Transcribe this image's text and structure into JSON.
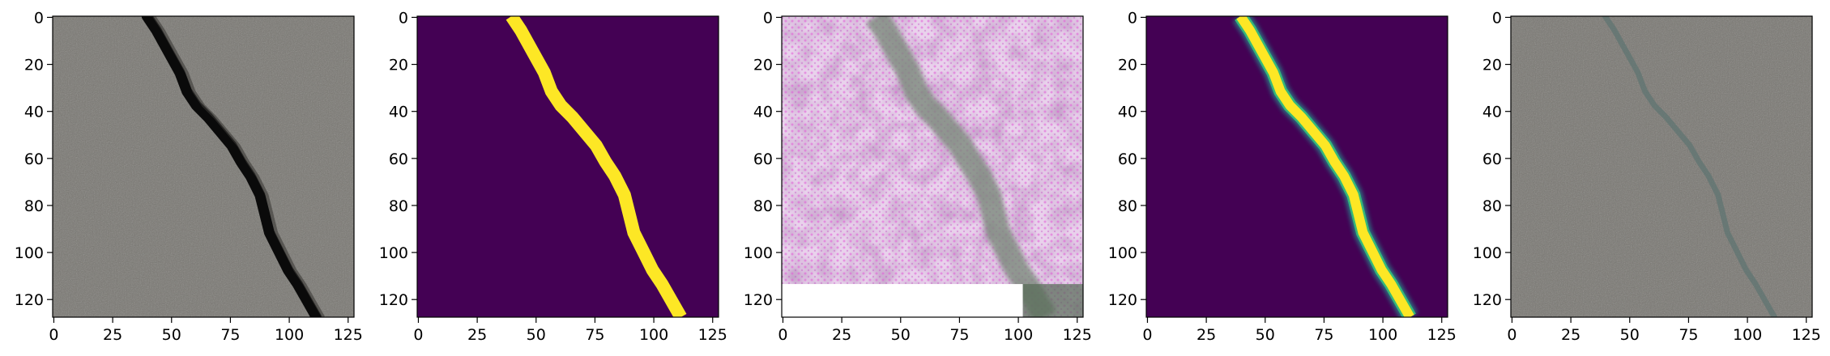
{
  "figure": {
    "panel_count": 5,
    "image_size": [
      128,
      128
    ],
    "panels": [
      {
        "content": "grayscale crack photograph",
        "colors": {
          "background": "#8a8781",
          "crack": "#0a0a0a",
          "speckle_light": "#c9c6bf",
          "speckle_dark": "#4d4b47"
        }
      },
      {
        "content": "binary crack mask",
        "colors": {
          "background": "#440154",
          "mask": "#fde725"
        }
      },
      {
        "content": "pink noisy reconstruction",
        "colors": {
          "background": "#e9d2ec",
          "blotch": "#a07aa4",
          "crack": "#7b8a7c",
          "dots": "#e25ad6",
          "bottom_band": "#ffffff"
        }
      },
      {
        "content": "soft crack probability map",
        "colors": {
          "background": "#440154",
          "core": "#fde725",
          "edge": "#35b779",
          "outer": "#21918c"
        }
      },
      {
        "content": "grayscale photo with faint overlay",
        "colors": {
          "background": "#8a8781",
          "crack": "#5f7472",
          "speckle_light": "#c9c6bf",
          "speckle_dark": "#4d4b47"
        }
      }
    ],
    "crack_path": [
      [
        40,
        0
      ],
      [
        44,
        6
      ],
      [
        49,
        15
      ],
      [
        54,
        24
      ],
      [
        57,
        32
      ],
      [
        61,
        38
      ],
      [
        66,
        43
      ],
      [
        71,
        49
      ],
      [
        76,
        55
      ],
      [
        80,
        62
      ],
      [
        84,
        68
      ],
      [
        88,
        76
      ],
      [
        90,
        84
      ],
      [
        92,
        92
      ],
      [
        96,
        100
      ],
      [
        100,
        108
      ],
      [
        104,
        114
      ],
      [
        108,
        121
      ],
      [
        112,
        128
      ]
    ],
    "axes": {
      "x_ticks": [
        "0",
        "25",
        "50",
        "75",
        "100",
        "125"
      ],
      "y_ticks": [
        "0",
        "20",
        "40",
        "60",
        "80",
        "100",
        "120"
      ]
    }
  }
}
